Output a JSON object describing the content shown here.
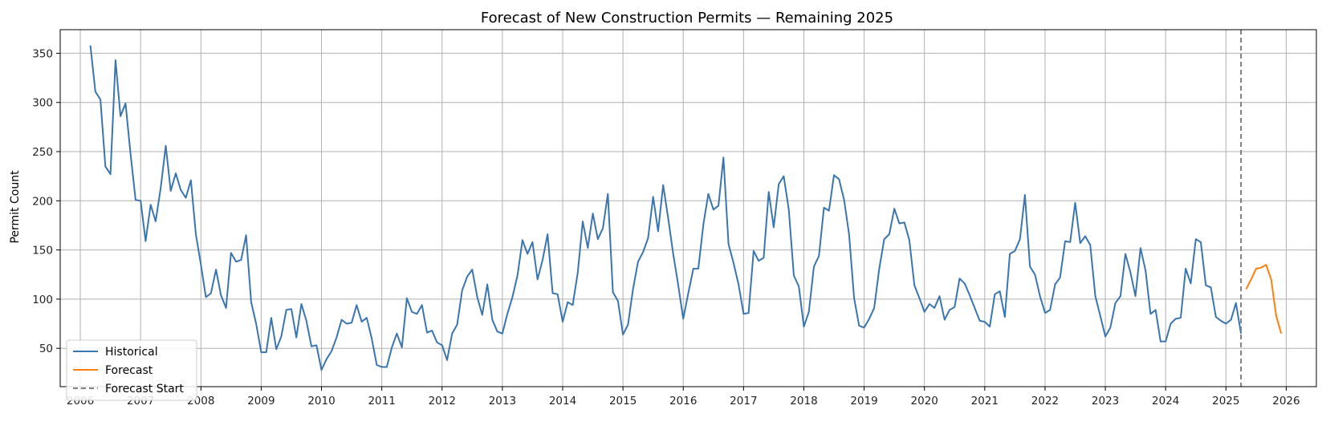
{
  "chart_data": {
    "type": "line",
    "title": "Forecast of New Construction Permits — Remaining 2025",
    "xlabel": "",
    "ylabel": "Permit Count",
    "x_ticks": [
      "2006",
      "2007",
      "2008",
      "2009",
      "2010",
      "2011",
      "2012",
      "2013",
      "2014",
      "2015",
      "2016",
      "2017",
      "2018",
      "2019",
      "2020",
      "2021",
      "2022",
      "2023",
      "2024",
      "2025",
      "2026"
    ],
    "y_ticks": [
      50,
      100,
      150,
      200,
      250,
      300,
      350
    ],
    "xlim": [
      "2005-09",
      "2026-07"
    ],
    "ylim": [
      11,
      374
    ],
    "grid": true,
    "legend_position": "lower-left",
    "forecast_start": "2025-04",
    "colors": {
      "historical": "#3a75b0",
      "forecast": "#ff7f0e",
      "forecast_start": "#7f7f7f"
    },
    "series": [
      {
        "name": "Historical",
        "start": "2006-03",
        "frequency": "monthly",
        "values": [
          358,
          311,
          303,
          235,
          227,
          343,
          286,
          299,
          248,
          201,
          200,
          159,
          196,
          179,
          213,
          256,
          210,
          228,
          211,
          203,
          221,
          166,
          135,
          102,
          106,
          130,
          104,
          91,
          147,
          138,
          140,
          165,
          97,
          75,
          46,
          46,
          81,
          49,
          62,
          89,
          90,
          61,
          95,
          78,
          52,
          53,
          28,
          39,
          47,
          61,
          79,
          75,
          76,
          94,
          77,
          81,
          60,
          33,
          31,
          31,
          51,
          65,
          51,
          101,
          87,
          85,
          94,
          66,
          68,
          56,
          53,
          38,
          65,
          74,
          109,
          123,
          130,
          102,
          84,
          115,
          79,
          67,
          65,
          85,
          102,
          124,
          160,
          146,
          158,
          120,
          140,
          166,
          106,
          105,
          77,
          97,
          94,
          127,
          179,
          152,
          187,
          161,
          172,
          207,
          107,
          98,
          64,
          74,
          110,
          138,
          148,
          162,
          204,
          169,
          216,
          182,
          146,
          114,
          80,
          106,
          131,
          131,
          176,
          207,
          191,
          195,
          244,
          156,
          137,
          115,
          85,
          86,
          149,
          139,
          142,
          209,
          173,
          217,
          225,
          191,
          124,
          113,
          72,
          87,
          133,
          144,
          193,
          190,
          226,
          222,
          201,
          166,
          101,
          73,
          71,
          80,
          91,
          131,
          161,
          166,
          192,
          177,
          178,
          160,
          114,
          101,
          87,
          95,
          91,
          103,
          79,
          89,
          92,
          121,
          116,
          104,
          91,
          78,
          77,
          72,
          105,
          108,
          82,
          146,
          149,
          161,
          206,
          133,
          125,
          103,
          86,
          89,
          115,
          122,
          159,
          158,
          198,
          157,
          164,
          155,
          103,
          83,
          62,
          71,
          96,
          103,
          146,
          127,
          103,
          152,
          129,
          85,
          89,
          57,
          57,
          75,
          80,
          81,
          131,
          116,
          161,
          158,
          114,
          112,
          82,
          78,
          75,
          79,
          96,
          65
        ]
      },
      {
        "name": "Forecast",
        "start": "2025-05",
        "frequency": "monthly",
        "values": [
          110,
          120,
          131,
          132,
          135,
          120,
          83,
          65
        ]
      }
    ],
    "annotations": [
      {
        "label": "Forecast Start",
        "x": "2025-04",
        "style": "dashed vertical line"
      }
    ]
  }
}
